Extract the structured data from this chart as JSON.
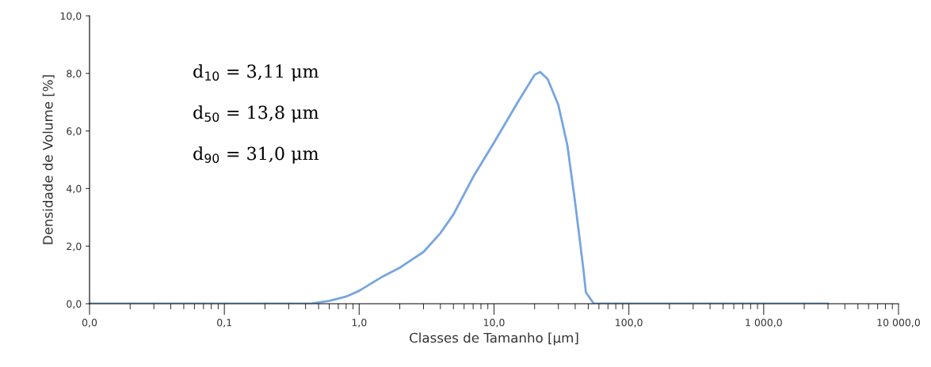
{
  "chart_data": {
    "type": "line",
    "xlabel": "Classes de Tamanho [µm]",
    "ylabel": "Densidade de Volume [%]",
    "log": "x",
    "grid": false,
    "legend": false,
    "marker": "none",
    "line_style": "solid",
    "xlim": [
      0.01,
      10000
    ],
    "xticks": [
      {
        "value": 0.01,
        "label": "0,0"
      },
      {
        "value": 0.1,
        "label": "0,1"
      },
      {
        "value": 1,
        "label": "1,0"
      },
      {
        "value": 10,
        "label": "10,0"
      },
      {
        "value": 100,
        "label": "100,0"
      },
      {
        "value": 1000,
        "label": "1 000,0"
      },
      {
        "value": 10000,
        "label": "10 000,0"
      }
    ],
    "ylim": [
      0,
      10
    ],
    "yticks": [
      {
        "value": 0,
        "label": "0,0"
      },
      {
        "value": 2,
        "label": "2,0"
      },
      {
        "value": 4,
        "label": "4,0"
      },
      {
        "value": 6,
        "label": "6,0"
      },
      {
        "value": 8,
        "label": "8,0"
      },
      {
        "value": 10,
        "label": "10,0"
      }
    ],
    "annotations": [
      "d$_{10}$ = 3,11 μm",
      "d$_{50}$ = 13,8 μm",
      "d$_{90}$ = 31,0 μm"
    ],
    "series": [
      {
        "color": "#76a5e0",
        "x": [
          0.01,
          0.43,
          0.6,
          0.8,
          1.0,
          1.5,
          2,
          3,
          4,
          5,
          7,
          10,
          15,
          20,
          22,
          25,
          30,
          35,
          40,
          46,
          48,
          55,
          3000
        ],
        "values": [
          0,
          0,
          0.1,
          0.25,
          0.45,
          0.95,
          1.25,
          1.8,
          2.45,
          3.1,
          4.4,
          5.6,
          7.0,
          7.95,
          8.05,
          7.8,
          6.9,
          5.5,
          3.5,
          1.2,
          0.4,
          0,
          0
        ]
      }
    ]
  }
}
